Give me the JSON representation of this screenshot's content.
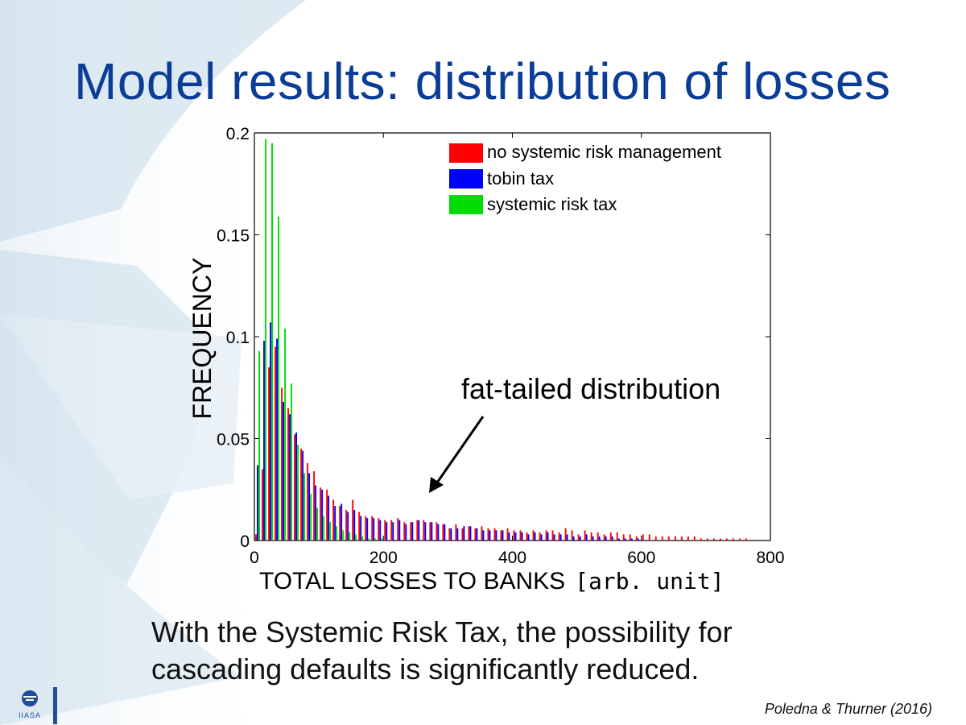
{
  "slide": {
    "title": "Model results: distribution of losses",
    "caption_lines": [
      "With the Systemic Risk Tax, the possibility for",
      "cascading defaults is significantly reduced."
    ],
    "citation": "Poledna & Thurner (2016)",
    "logo_text": "IIASA",
    "colors": {
      "title": "#0b3c96",
      "logo": "#1f4e9c"
    }
  },
  "chart_data": {
    "type": "bar",
    "title": "",
    "xlabel": "TOTAL LOSSES TO BANKS",
    "xlabel_unit": "[arb. unit]",
    "ylabel": "FREQUENCY",
    "xlim": [
      0,
      800
    ],
    "ylim": [
      0,
      0.2
    ],
    "x_ticks": [
      "0",
      "200",
      "400",
      "600",
      "800"
    ],
    "y_ticks": [
      "0",
      "0.05",
      "0.1",
      "0.15",
      "0.2"
    ],
    "bin_width": 10,
    "legend_position": "top-right",
    "annotation": "fat-tailed distribution",
    "series": [
      {
        "name": "no systemic risk management",
        "color": "#ff0000",
        "x": [
          0,
          10,
          20,
          30,
          40,
          50,
          60,
          70,
          80,
          90,
          100,
          110,
          120,
          130,
          140,
          150,
          160,
          170,
          180,
          190,
          200,
          210,
          220,
          230,
          240,
          250,
          260,
          270,
          280,
          290,
          300,
          310,
          320,
          330,
          340,
          350,
          360,
          370,
          380,
          390,
          400,
          410,
          420,
          430,
          440,
          450,
          460,
          470,
          480,
          490,
          500,
          510,
          520,
          530,
          540,
          550,
          560,
          570,
          580,
          590,
          600,
          610,
          620,
          630,
          640,
          650,
          660,
          670,
          680,
          690,
          700,
          710,
          720,
          730,
          740,
          750,
          760
        ],
        "values": [
          0.003,
          0.035,
          0.085,
          0.095,
          0.075,
          0.065,
          0.052,
          0.045,
          0.038,
          0.034,
          0.026,
          0.025,
          0.02,
          0.017,
          0.015,
          0.02,
          0.014,
          0.012,
          0.012,
          0.011,
          0.01,
          0.01,
          0.011,
          0.009,
          0.009,
          0.01,
          0.01,
          0.009,
          0.009,
          0.008,
          0.006,
          0.008,
          0.006,
          0.007,
          0.006,
          0.007,
          0.006,
          0.006,
          0.005,
          0.006,
          0.005,
          0.005,
          0.004,
          0.005,
          0.004,
          0.005,
          0.005,
          0.004,
          0.006,
          0.005,
          0.003,
          0.005,
          0.004,
          0.004,
          0.003,
          0.004,
          0.004,
          0.003,
          0.003,
          0.002,
          0.003,
          0.003,
          0.002,
          0.002,
          0.002,
          0.002,
          0.002,
          0.002,
          0.002,
          0.001,
          0.001,
          0.001,
          0.001,
          0.001,
          0.001,
          0.001,
          0.001
        ]
      },
      {
        "name": "tobin tax",
        "color": "#0000ff",
        "x": [
          0,
          10,
          20,
          30,
          40,
          50,
          60,
          70,
          80,
          90,
          100,
          110,
          120,
          130,
          140,
          150,
          160,
          170,
          180,
          190,
          200,
          210,
          220,
          230,
          240,
          250,
          260,
          270,
          280,
          290,
          300,
          310,
          320,
          330,
          340,
          350,
          360,
          370,
          380,
          390,
          400,
          410,
          420,
          430,
          440,
          450,
          460,
          470,
          480,
          490,
          500,
          510,
          520,
          530,
          540,
          550,
          560,
          570,
          580,
          590
        ],
        "values": [
          0.037,
          0.098,
          0.107,
          0.099,
          0.068,
          0.062,
          0.053,
          0.044,
          0.033,
          0.027,
          0.025,
          0.022,
          0.017,
          0.018,
          0.014,
          0.015,
          0.012,
          0.011,
          0.011,
          0.01,
          0.009,
          0.009,
          0.01,
          0.008,
          0.009,
          0.01,
          0.009,
          0.009,
          0.008,
          0.008,
          0.006,
          0.006,
          0.007,
          0.007,
          0.006,
          0.005,
          0.005,
          0.005,
          0.005,
          0.004,
          0.004,
          0.004,
          0.003,
          0.004,
          0.003,
          0.004,
          0.003,
          0.003,
          0.003,
          0.002,
          0.002,
          0.003,
          0.002,
          0.002,
          0.002,
          0.002,
          0.001,
          0.001,
          0.001,
          0.001
        ]
      },
      {
        "name": "systemic risk tax",
        "color": "#00dd00",
        "x": [
          0,
          10,
          20,
          30,
          40,
          50,
          60,
          70,
          80,
          90,
          100,
          110,
          120,
          130,
          140,
          150,
          160,
          170,
          180,
          190
        ],
        "values": [
          0.093,
          0.197,
          0.195,
          0.159,
          0.104,
          0.077,
          0.047,
          0.033,
          0.023,
          0.016,
          0.012,
          0.009,
          0.007,
          0.005,
          0.004,
          0.003,
          0.002,
          0.001,
          0.001,
          0.001
        ]
      }
    ]
  }
}
